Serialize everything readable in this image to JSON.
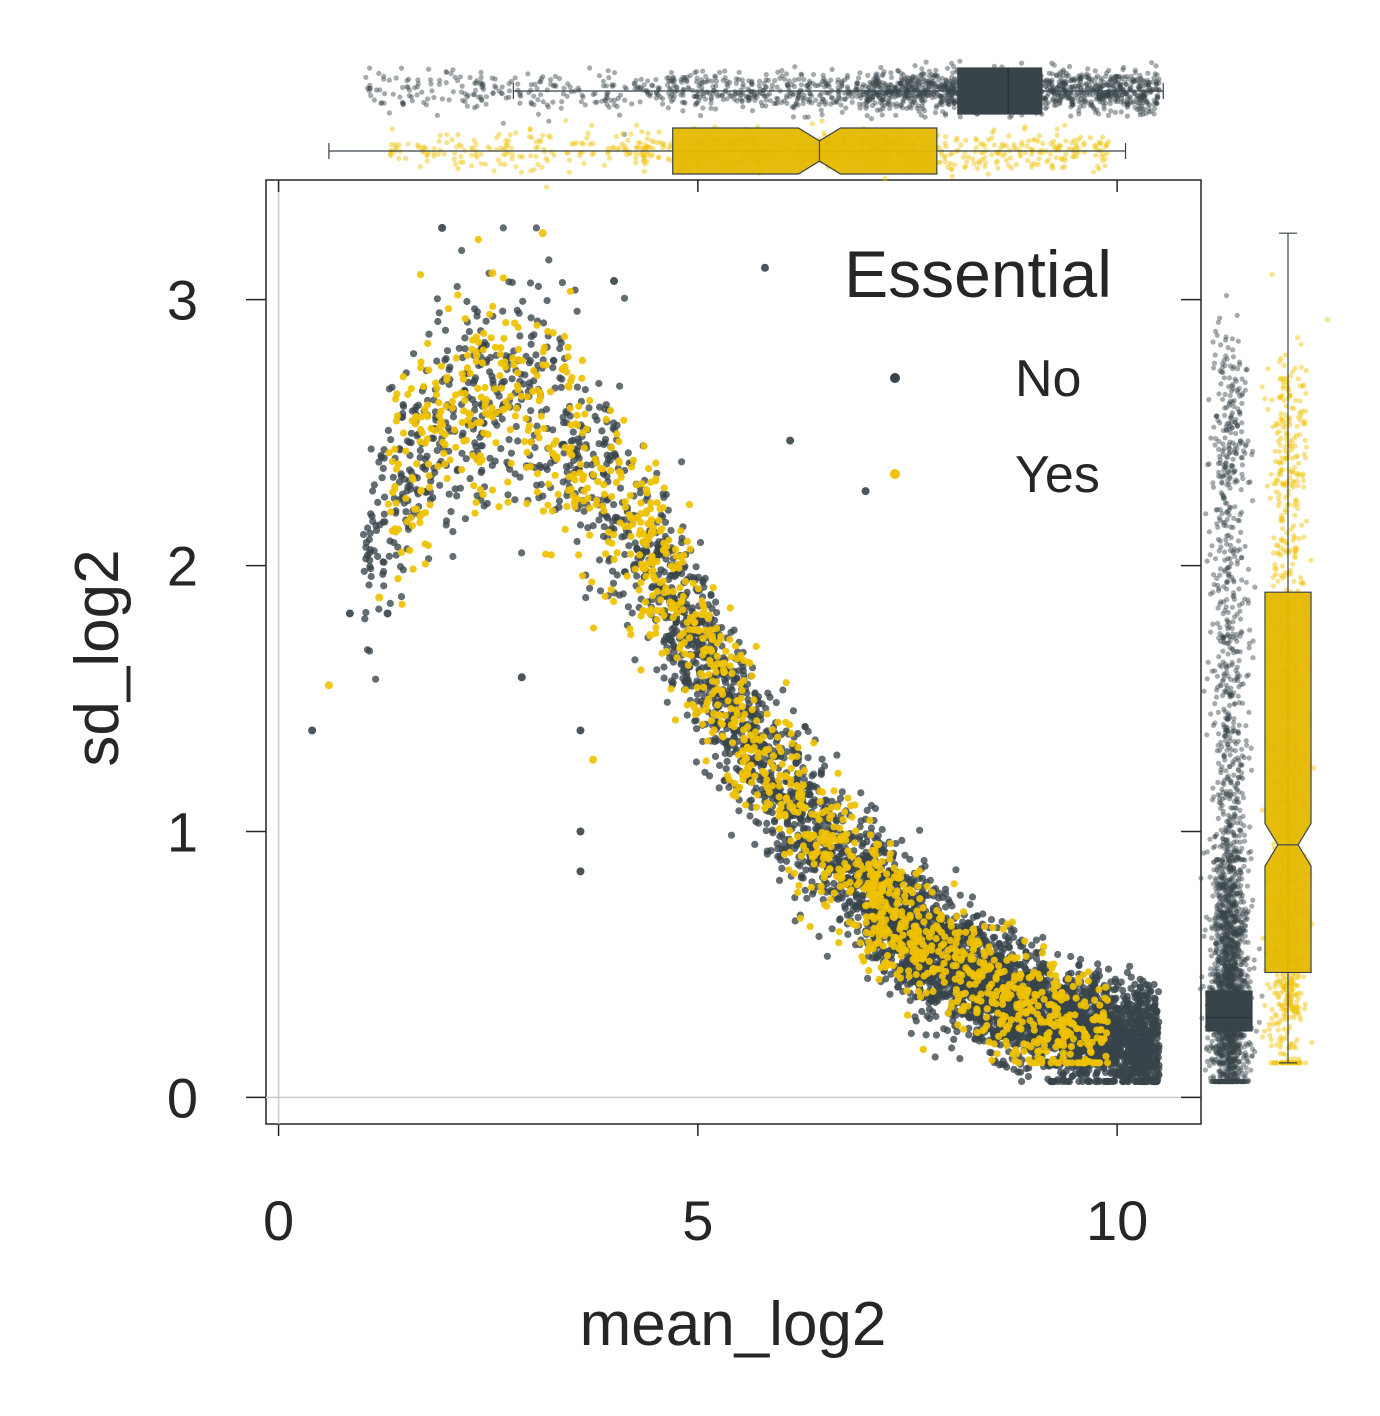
{
  "colors": {
    "no": "#37444a",
    "yes": "#efc100",
    "axis": "#262626",
    "zero_line": "#cccccc",
    "box_no": "#37444a",
    "box_yes": "#e5b800"
  },
  "chart_data": {
    "type": "scatter",
    "title": "",
    "xlabel": "mean_log2",
    "ylabel": "sd_log2",
    "xlim": [
      -0.15,
      11.0
    ],
    "ylim": [
      -0.1,
      3.45
    ],
    "xticks": [
      0,
      5,
      10
    ],
    "yticks": [
      0,
      1,
      2,
      3
    ],
    "xtick_labels": [
      "0",
      "5",
      "10"
    ],
    "ytick_labels": [
      "0",
      "1",
      "2",
      "3"
    ],
    "reference_lines": {
      "x": 0,
      "y": 0
    },
    "legend": {
      "title": "Essential",
      "position": "top-right",
      "entries": [
        {
          "label": "No",
          "series": "No"
        },
        {
          "label": "Yes",
          "series": "Yes"
        }
      ]
    },
    "trend": {
      "description": "sd_log2 rises to ~2.7 near mean_log2 2.5 then decreases to ~0.25 at mean_log2 10",
      "x": [
        0.4,
        1.0,
        1.5,
        2.0,
        2.5,
        3.0,
        3.5,
        4.0,
        4.5,
        5.0,
        5.5,
        6.0,
        6.5,
        7.0,
        7.5,
        8.0,
        8.5,
        9.0,
        9.5,
        10.0,
        10.4
      ],
      "y": [
        1.45,
        2.05,
        2.35,
        2.55,
        2.65,
        2.6,
        2.45,
        2.25,
        2.0,
        1.7,
        1.4,
        1.15,
        0.95,
        0.78,
        0.62,
        0.5,
        0.4,
        0.32,
        0.27,
        0.23,
        0.2
      ]
    },
    "series": [
      {
        "name": "No",
        "color": "#37444a",
        "n_points": 12000,
        "x_range": [
          0.4,
          10.55
        ],
        "y_range": [
          0.06,
          3.27
        ],
        "outliers": [
          {
            "x": 0.4,
            "y": 1.38
          },
          {
            "x": 1.95,
            "y": 3.27
          },
          {
            "x": 5.8,
            "y": 3.12
          },
          {
            "x": 4.0,
            "y": 3.07
          },
          {
            "x": 6.1,
            "y": 2.47
          },
          {
            "x": 7.0,
            "y": 2.28
          },
          {
            "x": 2.9,
            "y": 1.58
          },
          {
            "x": 3.6,
            "y": 1.38
          },
          {
            "x": 3.6,
            "y": 0.85
          },
          {
            "x": 3.6,
            "y": 1.0
          },
          {
            "x": 0.85,
            "y": 1.82
          },
          {
            "x": 1.3,
            "y": 1.82
          }
        ],
        "marginal_x_box": {
          "q1": 8.1,
          "median": 8.7,
          "q3": 9.1,
          "whisker_low": 2.8,
          "whisker_high": 10.55
        },
        "marginal_y_box": {
          "q1": 0.25,
          "median": 0.3,
          "q3": 0.4,
          "whisker_low": 0.06,
          "whisker_high": 0.5
        }
      },
      {
        "name": "Yes",
        "color": "#efc100",
        "n_points": 1800,
        "x_range": [
          0.6,
          10.1
        ],
        "y_range": [
          0.13,
          3.25
        ],
        "outliers": [
          {
            "x": 0.6,
            "y": 1.55
          },
          {
            "x": 3.15,
            "y": 3.25
          },
          {
            "x": 2.55,
            "y": 3.1
          },
          {
            "x": 3.75,
            "y": 1.27
          },
          {
            "x": 1.2,
            "y": 1.88
          }
        ],
        "marginal_x_box": {
          "q1": 4.7,
          "median": 6.45,
          "q3": 7.85,
          "notch_low": 6.2,
          "notch_high": 6.7,
          "whisker_low": 0.6,
          "whisker_high": 10.1
        },
        "marginal_y_box": {
          "q1": 0.47,
          "median": 0.95,
          "q3": 1.9,
          "notch_low": 0.87,
          "notch_high": 1.03,
          "whisker_low": 0.13,
          "whisker_high": 3.25
        }
      }
    ]
  }
}
